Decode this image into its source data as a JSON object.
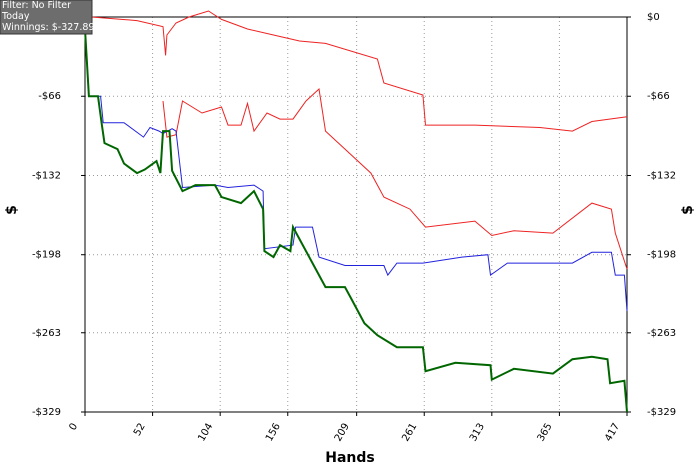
{
  "chart_data": {
    "type": "line",
    "info": [
      "Filter: No Filter",
      "Today",
      "Winnings: $-327.89"
    ],
    "xlabel": "Hands",
    "ylabel": "$",
    "y2label": "$",
    "xlim": [
      0,
      417
    ],
    "xticks": [
      0,
      52,
      104,
      156,
      209,
      261,
      313,
      365,
      417
    ],
    "ylim": [
      -329,
      0
    ],
    "yticks": [
      {
        "value": 0,
        "label": "$0"
      },
      {
        "value": -66,
        "label": "-$66"
      },
      {
        "value": -132,
        "label": "-$132"
      },
      {
        "value": -198,
        "label": "-$198"
      },
      {
        "value": -263,
        "label": "-$263"
      },
      {
        "value": -329,
        "label": "-$329"
      }
    ],
    "y2lim": [
      -329,
      0
    ],
    "y2ticks": [
      {
        "value": 0,
        "label": "$0"
      },
      {
        "value": -66,
        "label": "-$66"
      },
      {
        "value": -132,
        "label": "-$132"
      },
      {
        "value": -198,
        "label": "-$198"
      },
      {
        "value": -263,
        "label": "-$263"
      },
      {
        "value": -329,
        "label": "-$329"
      }
    ],
    "grid": true,
    "series": [
      {
        "color": "#ee2222",
        "x": [
          0,
          5,
          40,
          60,
          62,
          63,
          70,
          80,
          95,
          105,
          125,
          145,
          165,
          185,
          225,
          230,
          260,
          262,
          300,
          350,
          375,
          390,
          417
        ],
        "values": [
          0,
          0,
          -3,
          -8,
          -32,
          -15,
          -5,
          0,
          5,
          -2,
          -10,
          -15,
          -20,
          -22,
          -35,
          -55,
          -65,
          -90,
          -90,
          -92,
          -95,
          -87,
          -83
        ]
      },
      {
        "color": "#ee2222",
        "x": [
          60,
          63,
          70,
          75,
          90,
          105,
          110,
          120,
          125,
          130,
          140,
          150,
          160,
          170,
          180,
          185,
          200,
          220,
          230,
          250,
          262,
          300,
          313,
          330,
          360,
          390,
          405,
          408,
          417
        ],
        "values": [
          -70,
          -100,
          -98,
          -70,
          -80,
          -75,
          -90,
          -90,
          -72,
          -95,
          -80,
          -85,
          -85,
          -70,
          -60,
          -95,
          -110,
          -130,
          -150,
          -160,
          -175,
          -170,
          -182,
          -178,
          -180,
          -155,
          -160,
          -180,
          -210
        ]
      },
      {
        "color": "#2222dd",
        "x": [
          0,
          3,
          12,
          14,
          30,
          45,
          50,
          57,
          60,
          67,
          70,
          75,
          100,
          110,
          130,
          137,
          138,
          160,
          162,
          175,
          180,
          200,
          230,
          233,
          240,
          260,
          290,
          310,
          312,
          325,
          375,
          390,
          405,
          408,
          415,
          417
        ],
        "values": [
          -10,
          -66,
          -66,
          -88,
          -88,
          -100,
          -92,
          -95,
          -97,
          -93,
          -95,
          -142,
          -140,
          -142,
          -140,
          -145,
          -193,
          -190,
          -175,
          -175,
          -200,
          -207,
          -207,
          -215,
          -205,
          -205,
          -200,
          -198,
          -215,
          -205,
          -205,
          -196,
          -196,
          -215,
          -215,
          -245
        ]
      },
      {
        "color": "#006600",
        "x": [
          0,
          3,
          10,
          13,
          15,
          25,
          30,
          40,
          46,
          55,
          58,
          60,
          65,
          67,
          75,
          85,
          100,
          105,
          120,
          130,
          137,
          138,
          145,
          150,
          158,
          160,
          175,
          185,
          200,
          205,
          215,
          225,
          240,
          260,
          262,
          285,
          312,
          313,
          330,
          360,
          375,
          390,
          402,
          404,
          415,
          417
        ],
        "values": [
          -10,
          -66,
          -66,
          -90,
          -105,
          -110,
          -122,
          -130,
          -127,
          -120,
          -130,
          -95,
          -95,
          -128,
          -145,
          -140,
          -140,
          -150,
          -155,
          -145,
          -160,
          -195,
          -200,
          -190,
          -195,
          -175,
          -205,
          -225,
          -225,
          -235,
          -255,
          -265,
          -275,
          -275,
          -295,
          -288,
          -290,
          -302,
          -293,
          -297,
          -285,
          -283,
          -285,
          -305,
          -303,
          -329
        ]
      }
    ]
  }
}
